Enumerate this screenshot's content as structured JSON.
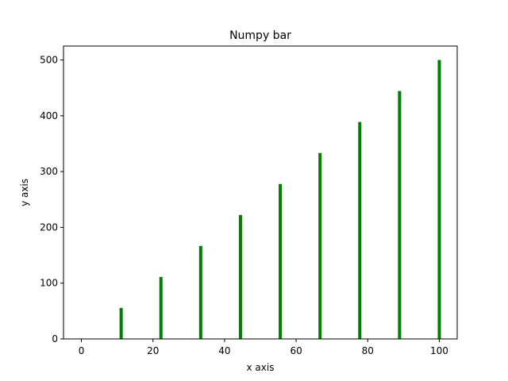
{
  "chart_data": {
    "type": "bar",
    "title": "Numpy bar",
    "xlabel": "x axis",
    "ylabel": "y axis",
    "x": [
      0,
      11.11,
      22.22,
      33.33,
      44.44,
      55.56,
      66.67,
      77.78,
      88.89,
      100
    ],
    "values": [
      0,
      55.56,
      111.11,
      166.67,
      222.22,
      277.78,
      333.33,
      388.89,
      444.44,
      500
    ],
    "xlim": [
      -5,
      105
    ],
    "ylim": [
      0,
      525
    ],
    "xticks": [
      0,
      20,
      40,
      60,
      80,
      100
    ],
    "yticks": [
      0,
      100,
      200,
      300,
      400,
      500
    ],
    "bar_color": "#008000",
    "grid": false
  }
}
